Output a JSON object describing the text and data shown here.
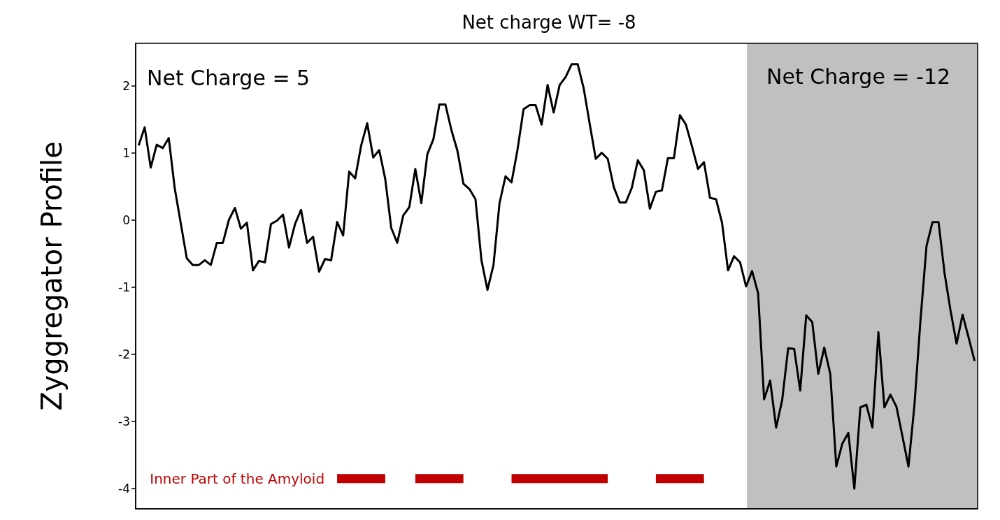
{
  "chart_data": {
    "type": "line",
    "title": "Net charge WT= -8",
    "ylabel": "Zyggregator Profile",
    "annotations": [
      "Net Charge = 5",
      "Net Charge = -12"
    ],
    "categories": [
      null,
      null,
      null,
      null,
      null,
      null,
      null,
      null,
      null,
      null,
      null,
      null,
      null,
      null,
      null,
      null,
      null,
      null,
      null,
      null,
      null,
      null,
      null,
      null,
      null,
      null,
      null,
      null,
      null,
      null,
      null,
      null,
      null,
      null,
      null,
      null,
      null,
      null,
      null,
      null,
      null,
      null,
      null,
      null,
      null,
      null,
      null,
      null,
      null,
      null,
      null,
      null,
      null,
      null,
      null,
      null,
      null,
      null,
      null,
      null,
      null,
      null,
      null,
      null,
      null,
      null,
      null,
      null,
      null,
      null,
      null,
      null,
      null,
      null,
      null,
      null,
      null,
      null,
      null,
      null,
      null,
      null,
      null,
      null,
      null,
      null,
      null,
      null,
      null,
      null,
      null,
      null,
      null,
      null,
      null,
      null,
      null,
      null,
      null,
      null,
      null,
      null,
      null,
      null,
      null,
      null,
      null,
      null,
      null,
      null,
      null,
      null,
      null,
      null,
      null,
      null,
      null,
      null,
      null,
      null,
      null,
      null,
      null,
      null,
      null,
      null,
      null,
      null,
      null,
      null,
      null,
      null,
      null,
      null,
      null,
      null,
      null,
      null,
      null,
      null
    ],
    "ylim": [
      -4.3,
      2.63
    ],
    "yticks": [
      -4,
      -3,
      -2,
      -1,
      0,
      1,
      2
    ],
    "tick_labels": "y",
    "series": [
      {
        "color": "#000000",
        "values": [
          1.11,
          1.38,
          0.78,
          1.12,
          1.07,
          1.22,
          0.47,
          -0.05,
          -0.57,
          -0.67,
          -0.67,
          -0.6,
          -0.67,
          -0.34,
          -0.34,
          0.0,
          0.18,
          -0.13,
          -0.04,
          -0.75,
          -0.61,
          -0.63,
          -0.06,
          -0.01,
          0.08,
          -0.41,
          -0.06,
          0.15,
          -0.34,
          -0.25,
          -0.77,
          -0.58,
          -0.6,
          -0.03,
          -0.23,
          0.72,
          0.62,
          1.11,
          1.44,
          0.93,
          1.04,
          0.61,
          -0.12,
          -0.34,
          0.07,
          0.19,
          0.76,
          0.25,
          0.98,
          1.2,
          1.72,
          1.72,
          1.34,
          1.03,
          0.54,
          0.46,
          0.31,
          -0.6,
          -1.04,
          -0.67,
          0.25,
          0.65,
          0.56,
          1.05,
          1.65,
          1.71,
          1.71,
          1.42,
          2.01,
          1.6,
          2.01,
          2.13,
          2.32,
          2.32,
          1.96,
          1.43,
          0.91,
          1.0,
          0.91,
          0.49,
          0.26,
          0.26,
          0.48,
          0.89,
          0.74,
          0.17,
          0.42,
          0.44,
          0.92,
          0.92,
          1.56,
          1.42,
          1.1,
          0.76,
          0.86,
          0.33,
          0.31,
          -0.04,
          -0.75,
          -0.54,
          -0.63,
          -0.99,
          -0.76,
          -1.09,
          -2.67,
          -2.39,
          -3.09,
          -2.68,
          -1.91,
          -1.92,
          -2.54,
          -1.42,
          -1.52,
          -2.29,
          -1.9,
          -2.29,
          -3.67,
          -3.33,
          -3.17,
          -4.0,
          -2.79,
          -2.75,
          -3.09,
          -1.67,
          -2.79,
          -2.6,
          -2.78,
          -3.22,
          -3.67,
          -2.75,
          -1.49,
          -0.39,
          -0.03,
          -0.03,
          -0.79,
          -1.35,
          -1.84,
          -1.41,
          -1.75,
          -2.1
        ]
      },
      {
        "name": "Inner Part of the Amyloid",
        "color": "#c00000",
        "values": [
          null,
          null,
          null,
          null,
          null,
          null,
          null,
          null,
          null,
          null,
          null,
          null,
          null,
          null,
          null,
          null,
          null,
          null,
          null,
          null,
          null,
          null,
          null,
          null,
          null,
          null,
          null,
          null,
          null,
          null,
          null,
          null,
          null,
          -3.85,
          -3.85,
          -3.85,
          -3.85,
          -3.85,
          -3.85,
          -3.85,
          -3.85,
          -3.85,
          null,
          null,
          null,
          null,
          -3.85,
          -3.85,
          -3.85,
          -3.85,
          -3.85,
          -3.85,
          -3.85,
          -3.85,
          -3.85,
          null,
          null,
          null,
          null,
          null,
          null,
          null,
          -3.85,
          -3.85,
          -3.85,
          -3.85,
          -3.85,
          -3.85,
          -3.85,
          -3.85,
          -3.85,
          -3.85,
          -3.85,
          -3.85,
          -3.85,
          -3.85,
          -3.85,
          -3.85,
          -3.85,
          null,
          null,
          null,
          null,
          null,
          null,
          null,
          -3.85,
          -3.85,
          -3.85,
          -3.85,
          -3.85,
          -3.85,
          -3.85,
          -3.85,
          -3.85,
          null,
          null,
          null,
          null,
          null,
          null,
          null,
          null,
          null,
          null,
          null,
          null,
          null,
          null,
          null,
          null,
          null,
          null,
          null,
          null,
          null,
          null,
          null,
          null,
          null,
          null,
          null,
          null,
          null,
          null,
          null,
          null,
          null,
          null,
          null,
          null,
          null,
          null,
          null,
          null,
          null,
          null,
          null,
          null,
          null
        ]
      }
    ]
  }
}
